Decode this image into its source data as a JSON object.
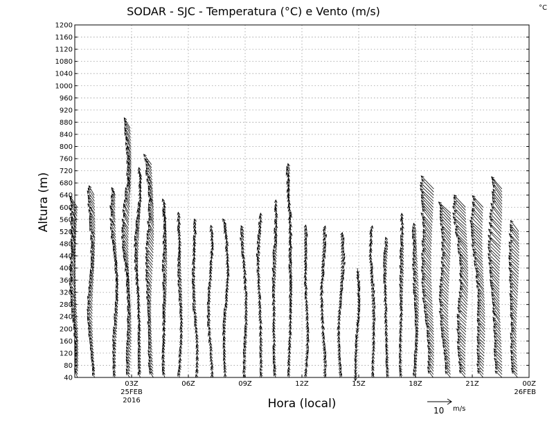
{
  "chart_data": {
    "type": "vector-profile",
    "title": "SODAR - SJC - Temperatura (°C) e Vento (m/s)",
    "unit_corner": "°C",
    "xlabel": "Hora (local)",
    "ylabel": "Altura (m)",
    "ylim": [
      40,
      1200
    ],
    "yticks": [
      40,
      80,
      120,
      160,
      200,
      240,
      280,
      320,
      360,
      400,
      440,
      480,
      520,
      560,
      600,
      640,
      680,
      720,
      760,
      800,
      840,
      880,
      920,
      960,
      1000,
      1040,
      1080,
      1120,
      1160,
      1200
    ],
    "xlim_hours": [
      0,
      24
    ],
    "xticks": [
      {
        "hour": 3,
        "label": "03Z",
        "sub1": "25FEB",
        "sub2": "2016"
      },
      {
        "hour": 6,
        "label": "06Z",
        "sub1": "",
        "sub2": ""
      },
      {
        "hour": 9,
        "label": "09Z",
        "sub1": "",
        "sub2": ""
      },
      {
        "hour": 12,
        "label": "12Z",
        "sub1": "",
        "sub2": ""
      },
      {
        "hour": 15,
        "label": "15Z",
        "sub1": "",
        "sub2": ""
      },
      {
        "hour": 18,
        "label": "18Z",
        "sub1": "",
        "sub2": ""
      },
      {
        "hour": 21,
        "label": "21Z",
        "sub1": "",
        "sub2": ""
      },
      {
        "hour": 24,
        "label": "00Z",
        "sub1": "26FEB",
        "sub2": ""
      }
    ],
    "grid": true,
    "reference_vector": {
      "speed": 10,
      "label": "10",
      "unit": "m/s"
    },
    "profiles": [
      {
        "hour": 0.1,
        "top": 600,
        "u": -1.5,
        "v": 3.0
      },
      {
        "hour": 1.0,
        "top": 640,
        "u": -1.2,
        "v": 2.5
      },
      {
        "hour": 2.2,
        "top": 640,
        "u": -0.8,
        "v": 2.0
      },
      {
        "hour": 2.9,
        "top": 860,
        "u": -1.2,
        "v": 2.6
      },
      {
        "hour": 3.4,
        "top": 700,
        "u": -0.5,
        "v": 2.2
      },
      {
        "hour": 4.1,
        "top": 740,
        "u": -1.5,
        "v": 2.5
      },
      {
        "hour": 4.8,
        "top": 600,
        "u": -0.8,
        "v": 2.2
      },
      {
        "hour": 5.6,
        "top": 560,
        "u": -0.6,
        "v": 1.8
      },
      {
        "hour": 6.4,
        "top": 540,
        "u": -0.5,
        "v": 1.6
      },
      {
        "hour": 7.2,
        "top": 520,
        "u": -0.3,
        "v": 1.6
      },
      {
        "hour": 8.0,
        "top": 540,
        "u": -0.3,
        "v": 1.8
      },
      {
        "hour": 9.0,
        "top": 520,
        "u": -0.4,
        "v": 1.5
      },
      {
        "hour": 9.8,
        "top": 560,
        "u": -0.2,
        "v": 1.5
      },
      {
        "hour": 10.6,
        "top": 600,
        "u": -0.5,
        "v": 1.8
      },
      {
        "hour": 11.4,
        "top": 720,
        "u": -0.3,
        "v": 2.0
      },
      {
        "hour": 12.2,
        "top": 520,
        "u": 0.2,
        "v": 1.6
      },
      {
        "hour": 13.1,
        "top": 520,
        "u": 0.4,
        "v": 1.6
      },
      {
        "hour": 14.0,
        "top": 500,
        "u": 0.6,
        "v": 1.5
      },
      {
        "hour": 14.9,
        "top": 400,
        "u": 0.0,
        "v": -1.8
      },
      {
        "hour": 15.7,
        "top": 520,
        "u": 0.4,
        "v": 1.5
      },
      {
        "hour": 16.5,
        "top": 480,
        "u": -0.4,
        "v": 1.6
      },
      {
        "hour": 17.3,
        "top": 560,
        "u": -0.6,
        "v": 1.6
      },
      {
        "hour": 18.1,
        "top": 520,
        "u": -1.2,
        "v": 2.0
      },
      {
        "hour": 18.9,
        "top": 660,
        "u": -2.8,
        "v": 3.2
      },
      {
        "hour": 19.8,
        "top": 580,
        "u": -2.6,
        "v": 3.0
      },
      {
        "hour": 20.7,
        "top": 600,
        "u": -2.8,
        "v": 3.2
      },
      {
        "hour": 21.6,
        "top": 600,
        "u": -2.6,
        "v": 3.0
      },
      {
        "hour": 22.5,
        "top": 660,
        "u": -2.8,
        "v": 3.2
      },
      {
        "hour": 23.4,
        "top": 520,
        "u": -2.4,
        "v": 2.8
      }
    ]
  }
}
